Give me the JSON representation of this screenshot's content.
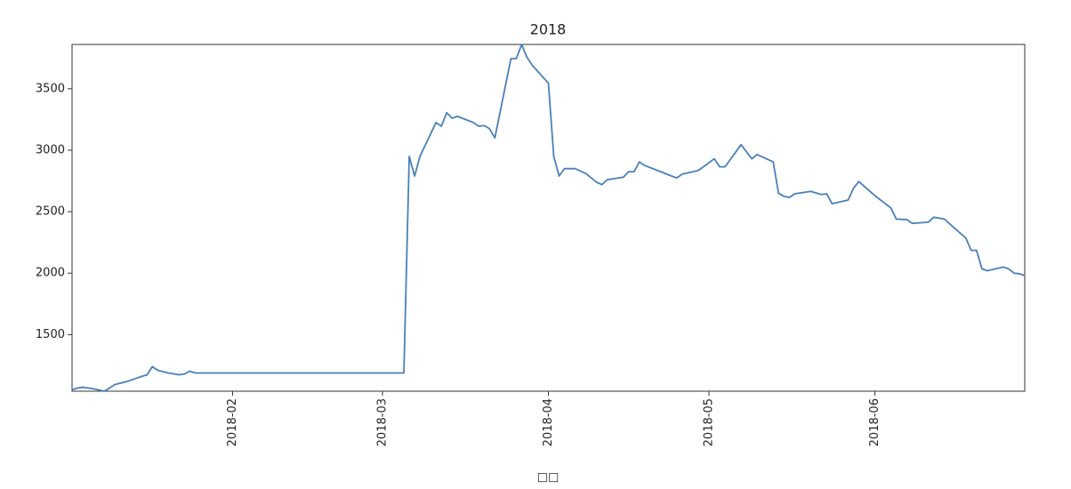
{
  "chart_data": {
    "type": "line",
    "title": "2018",
    "xlabel": "□□",
    "x": [
      "2018-01-02",
      "2018-01-03",
      "2018-01-04",
      "2018-01-06",
      "2018-01-08",
      "2018-01-09",
      "2018-01-10",
      "2018-01-12",
      "2018-01-13",
      "2018-01-15",
      "2018-01-16",
      "2018-01-17",
      "2018-01-18",
      "2018-01-20",
      "2018-01-22",
      "2018-01-23",
      "2018-01-24",
      "2018-01-25",
      "2018-02-15",
      "2018-03-05",
      "2018-03-06",
      "2018-03-07",
      "2018-03-08",
      "2018-03-11",
      "2018-03-12",
      "2018-03-13",
      "2018-03-14",
      "2018-03-15",
      "2018-03-18",
      "2018-03-19",
      "2018-03-20",
      "2018-03-21",
      "2018-03-22",
      "2018-03-25",
      "2018-03-26",
      "2018-03-27",
      "2018-03-28",
      "2018-03-29",
      "2018-04-01",
      "2018-04-02",
      "2018-04-03",
      "2018-04-04",
      "2018-04-06",
      "2018-04-08",
      "2018-04-10",
      "2018-04-11",
      "2018-04-12",
      "2018-04-15",
      "2018-04-16",
      "2018-04-17",
      "2018-04-18",
      "2018-04-19",
      "2018-04-22",
      "2018-04-24",
      "2018-04-25",
      "2018-04-26",
      "2018-04-29",
      "2018-05-02",
      "2018-05-03",
      "2018-05-04",
      "2018-05-07",
      "2018-05-09",
      "2018-05-10",
      "2018-05-13",
      "2018-05-14",
      "2018-05-15",
      "2018-05-16",
      "2018-05-17",
      "2018-05-20",
      "2018-05-22",
      "2018-05-23",
      "2018-05-24",
      "2018-05-27",
      "2018-05-28",
      "2018-05-29",
      "2018-06-01",
      "2018-06-04",
      "2018-06-05",
      "2018-06-07",
      "2018-06-08",
      "2018-06-11",
      "2018-06-12",
      "2018-06-14",
      "2018-06-15",
      "2018-06-18",
      "2018-06-19",
      "2018-06-20",
      "2018-06-21",
      "2018-06-22",
      "2018-06-25",
      "2018-06-26",
      "2018-06-27",
      "2018-06-28",
      "2018-06-29"
    ],
    "series": [
      {
        "color": "#4a80b8",
        "values": [
          1051,
          1065,
          1072,
          1060,
          1040,
          1065,
          1094,
          1116,
          1130,
          1160,
          1173,
          1240,
          1210,
          1188,
          1174,
          1180,
          1203,
          1188,
          1188,
          1188,
          2950,
          2790,
          2950,
          3225,
          3195,
          3305,
          3260,
          3275,
          3225,
          3195,
          3200,
          3175,
          3100,
          3745,
          3745,
          3860,
          3755,
          3690,
          3545,
          2950,
          2790,
          2850,
          2850,
          2810,
          2740,
          2720,
          2760,
          2780,
          2825,
          2825,
          2905,
          2875,
          2825,
          2790,
          2775,
          2805,
          2835,
          2930,
          2865,
          2865,
          3045,
          2930,
          2965,
          2905,
          2650,
          2625,
          2615,
          2645,
          2665,
          2640,
          2645,
          2565,
          2595,
          2690,
          2745,
          2630,
          2530,
          2440,
          2435,
          2405,
          2415,
          2455,
          2440,
          2400,
          2285,
          2185,
          2185,
          2035,
          2020,
          2050,
          2035,
          2000,
          1995,
          1980
        ]
      }
    ],
    "xlim": [
      "2018-01-02",
      "2018-06-29"
    ],
    "xticks": [
      {
        "value": "2018-02-01",
        "label": "2018-02"
      },
      {
        "value": "2018-03-01",
        "label": "2018-03"
      },
      {
        "value": "2018-04-01",
        "label": "2018-04"
      },
      {
        "value": "2018-05-01",
        "label": "2018-05"
      },
      {
        "value": "2018-06-01",
        "label": "2018-06"
      }
    ],
    "ylim": [
      1040,
      3860
    ],
    "yticks": [
      1500,
      2000,
      2500,
      3000,
      3500
    ],
    "grid": false
  }
}
